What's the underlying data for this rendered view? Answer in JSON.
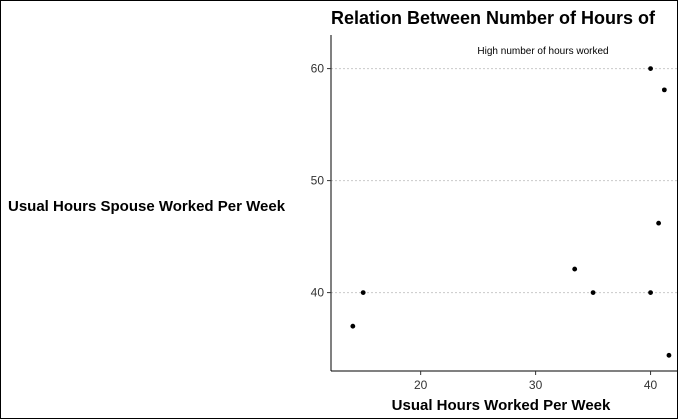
{
  "chart_data": {
    "type": "scatter",
    "title": "Relation Between Number of Hours of",
    "xlabel": "Usual Hours Worked Per Week",
    "ylabel": "Usual Hours Spouse Worked Per Week",
    "annotation": "High number of hours worked",
    "annotation_at": {
      "x": 31,
      "y": 61.5
    },
    "xlim": [
      12.2,
      42.3
    ],
    "ylim": [
      33,
      63
    ],
    "x_ticks": [
      20,
      30,
      40
    ],
    "y_ticks": [
      40,
      50,
      60
    ],
    "grid": "horizontal-dotted",
    "legend": "none",
    "point_color": "#000000",
    "points": [
      {
        "x": 14.1,
        "y": 37.0
      },
      {
        "x": 15.0,
        "y": 40.0
      },
      {
        "x": 33.4,
        "y": 42.1
      },
      {
        "x": 35.0,
        "y": 40.0
      },
      {
        "x": 40.0,
        "y": 60.0
      },
      {
        "x": 40.0,
        "y": 40.0
      },
      {
        "x": 40.7,
        "y": 46.2
      },
      {
        "x": 41.2,
        "y": 58.1
      },
      {
        "x": 41.6,
        "y": 34.4
      }
    ]
  }
}
